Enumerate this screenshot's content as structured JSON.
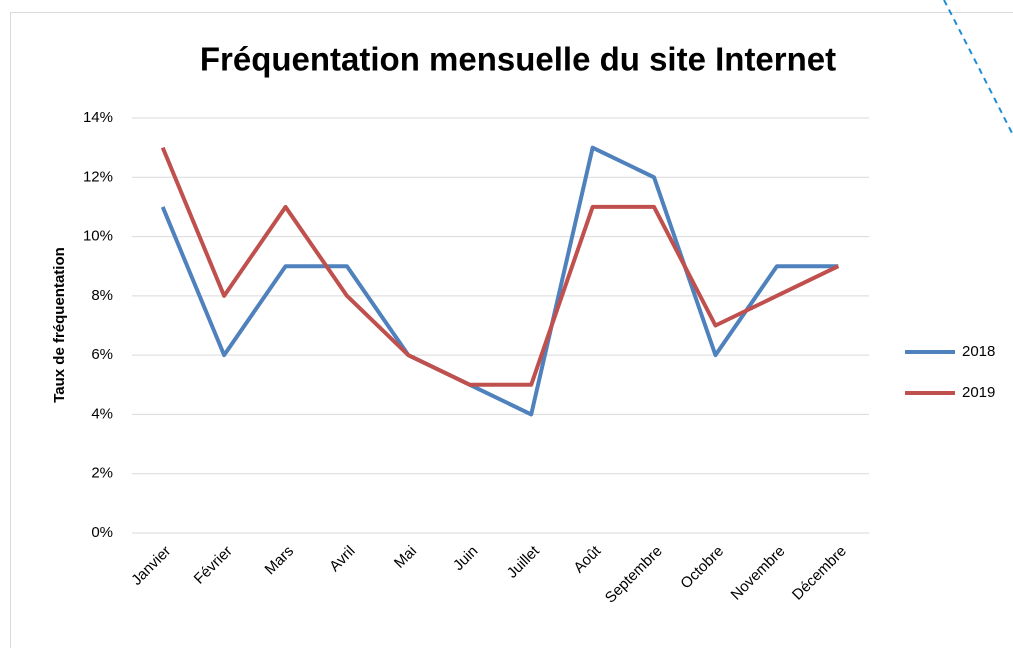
{
  "chart_data": {
    "type": "line",
    "title": "Fréquentation mensuelle du site Internet",
    "y_label": "Taux de fréquentation",
    "categories": [
      "Janvier",
      "Février",
      "Mars",
      "Avril",
      "Mai",
      "Juin",
      "Juillet",
      "Août",
      "Septembre",
      "Octobre",
      "Novembre",
      "Décembre"
    ],
    "series": [
      {
        "name": "2018",
        "color": "#4f81bd",
        "values": [
          11,
          6,
          9,
          9,
          6,
          5,
          4,
          13,
          12,
          6,
          9,
          9
        ]
      },
      {
        "name": "2019",
        "color": "#c0504d",
        "values": [
          13,
          8,
          11,
          8,
          6,
          5,
          5,
          11,
          11,
          7,
          8,
          9
        ]
      }
    ],
    "ylim": [
      0,
      14
    ],
    "yticks": [
      {
        "value": 0,
        "label": "0%"
      },
      {
        "value": 2,
        "label": "2%"
      },
      {
        "value": 4,
        "label": "4%"
      },
      {
        "value": 6,
        "label": "6%"
      },
      {
        "value": 8,
        "label": "8%"
      },
      {
        "value": 10,
        "label": "10%"
      },
      {
        "value": 12,
        "label": "12%"
      },
      {
        "value": 14,
        "label": "14%"
      }
    ],
    "grid": true,
    "legend": "right"
  }
}
